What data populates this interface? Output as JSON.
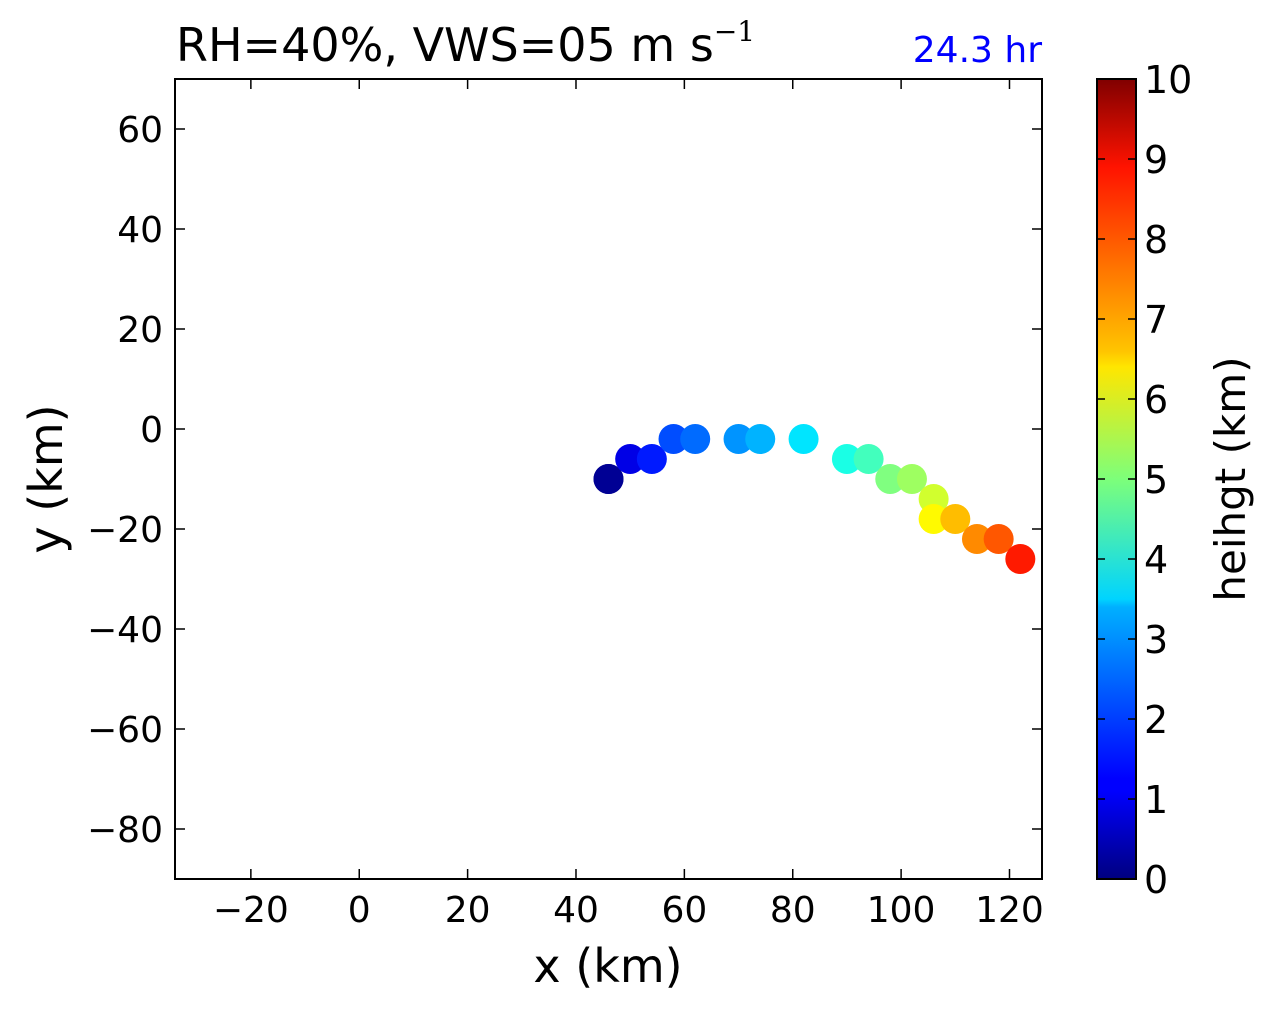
{
  "chart_data": {
    "type": "scatter",
    "title": "RH=40%, VWS=05 m s",
    "title_superscript": "−1",
    "annotation": "24.3 hr",
    "annotation_color": "#0000ff",
    "xlabel": "x (km)",
    "ylabel": "y (km)",
    "xlim": [
      -34,
      126
    ],
    "ylim": [
      -90,
      70
    ],
    "xticks": [
      "−20",
      "0",
      "20",
      "40",
      "60",
      "80",
      "100",
      "120"
    ],
    "xtick_values": [
      -20,
      0,
      20,
      40,
      60,
      80,
      100,
      120
    ],
    "yticks": [
      "−80",
      "−60",
      "−40",
      "−20",
      "0",
      "20",
      "40",
      "60"
    ],
    "ytick_values": [
      -80,
      -60,
      -40,
      -20,
      0,
      20,
      40,
      60
    ],
    "colorbar": {
      "label": "heihgt (km)",
      "colormap": "jet",
      "range": [
        0,
        10
      ],
      "ticks": [
        "0",
        "1",
        "2",
        "3",
        "4",
        "5",
        "6",
        "7",
        "8",
        "9",
        "10"
      ]
    },
    "points": [
      {
        "x": 46,
        "y": -10,
        "height": 0.0
      },
      {
        "x": 46,
        "y": -10,
        "height": 0.2
      },
      {
        "x": 50,
        "y": -6,
        "height": 1.0
      },
      {
        "x": 54,
        "y": -6,
        "height": 1.5
      },
      {
        "x": 58,
        "y": -2,
        "height": 2.0
      },
      {
        "x": 62,
        "y": -2,
        "height": 2.3
      },
      {
        "x": 70,
        "y": -2,
        "height": 2.7
      },
      {
        "x": 74,
        "y": -2,
        "height": 3.0
      },
      {
        "x": 82,
        "y": -2,
        "height": 3.5
      },
      {
        "x": 90,
        "y": -6,
        "height": 4.0
      },
      {
        "x": 94,
        "y": -6,
        "height": 4.4
      },
      {
        "x": 98,
        "y": -10,
        "height": 5.0
      },
      {
        "x": 102,
        "y": -10,
        "height": 5.3
      },
      {
        "x": 106,
        "y": -14,
        "height": 5.8
      },
      {
        "x": 106,
        "y": -18,
        "height": 6.3
      },
      {
        "x": 110,
        "y": -18,
        "height": 6.9
      },
      {
        "x": 114,
        "y": -22,
        "height": 7.4
      },
      {
        "x": 118,
        "y": -22,
        "height": 7.9
      },
      {
        "x": 122,
        "y": -26,
        "height": 8.5
      }
    ]
  }
}
